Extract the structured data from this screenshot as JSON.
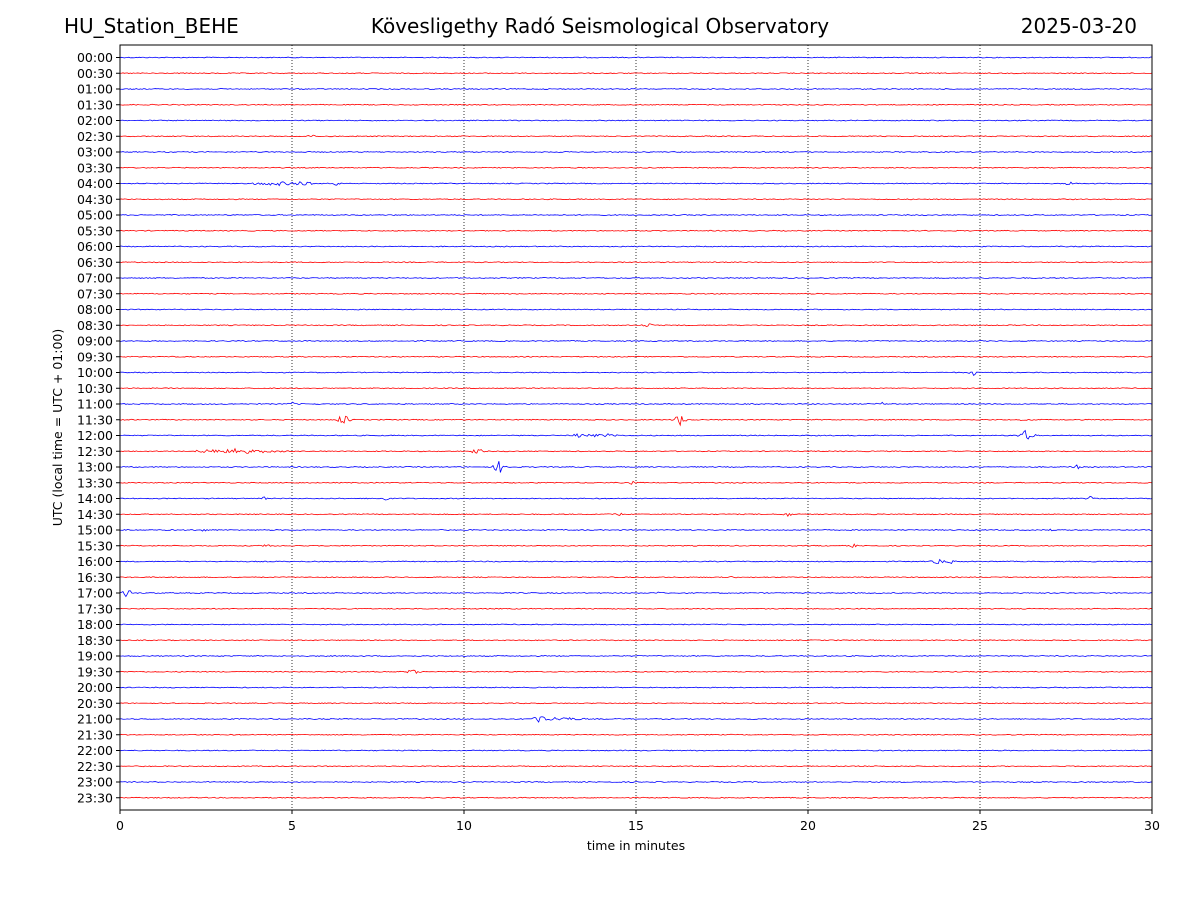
{
  "header": {
    "station": "HU_Station_BEHE",
    "observatory": "Kövesligethy Radó Seismological Observatory",
    "date": "2025-03-20"
  },
  "chart_data": {
    "type": "line",
    "title": "Kövesligethy Radó Seismological Observatory",
    "xlabel": "time in minutes",
    "ylabel": "UTC (local time = UTC + 01:00)",
    "xlim": [
      0,
      30
    ],
    "x_ticks": [
      "0",
      "5",
      "10",
      "15",
      "20",
      "25",
      "30"
    ],
    "grid": "vertical dotted lines at 5, 10, 15, 20, 25",
    "row_colors": [
      "#0000ff",
      "#ff0000"
    ],
    "rows": [
      "00:00",
      "00:30",
      "01:00",
      "01:30",
      "02:00",
      "02:30",
      "03:00",
      "03:30",
      "04:00",
      "04:30",
      "05:00",
      "05:30",
      "06:00",
      "06:30",
      "07:00",
      "07:30",
      "08:00",
      "08:30",
      "09:00",
      "09:30",
      "10:00",
      "10:30",
      "11:00",
      "11:30",
      "12:00",
      "12:30",
      "13:00",
      "13:30",
      "14:00",
      "14:30",
      "15:00",
      "15:30",
      "16:00",
      "16:30",
      "17:00",
      "17:30",
      "18:00",
      "18:30",
      "19:00",
      "19:30",
      "20:00",
      "20:30",
      "21:00",
      "21:30",
      "22:00",
      "22:30",
      "23:00",
      "23:30"
    ],
    "events": [
      {
        "row": "02:30",
        "t": 5.6,
        "amp": 2,
        "dur": 0.2
      },
      {
        "row": "04:00",
        "t": 4.5,
        "amp": 2,
        "dur": 1.0
      },
      {
        "row": "04:00",
        "t": 5.4,
        "amp": 2,
        "dur": 0.5
      },
      {
        "row": "04:00",
        "t": 6.3,
        "amp": 1.5,
        "dur": 0.2
      },
      {
        "row": "04:00",
        "t": 27.6,
        "amp": 1.5,
        "dur": 0.2
      },
      {
        "row": "08:30",
        "t": 15.3,
        "amp": 2,
        "dur": 0.4
      },
      {
        "row": "10:00",
        "t": 24.8,
        "amp": 3,
        "dur": 0.15
      },
      {
        "row": "11:00",
        "t": 5.0,
        "amp": 2,
        "dur": 0.2
      },
      {
        "row": "11:00",
        "t": 22.1,
        "amp": 2.5,
        "dur": 0.2
      },
      {
        "row": "11:30",
        "t": 6.5,
        "amp": 6,
        "dur": 0.25
      },
      {
        "row": "11:30",
        "t": 16.3,
        "amp": 6,
        "dur": 0.25
      },
      {
        "row": "11:30",
        "t": 26.3,
        "amp": 2,
        "dur": 0.2
      },
      {
        "row": "12:00",
        "t": 13.3,
        "amp": 2.5,
        "dur": 0.2
      },
      {
        "row": "12:00",
        "t": 14.0,
        "amp": 2,
        "dur": 0.8
      },
      {
        "row": "12:00",
        "t": 26.35,
        "amp": 6,
        "dur": 0.3
      },
      {
        "row": "12:30",
        "t": 3.2,
        "amp": 2.5,
        "dur": 1.8
      },
      {
        "row": "12:30",
        "t": 10.4,
        "amp": 3,
        "dur": 0.25
      },
      {
        "row": "13:00",
        "t": 11.05,
        "amp": 7,
        "dur": 0.25
      },
      {
        "row": "13:00",
        "t": 27.8,
        "amp": 2.5,
        "dur": 0.15
      },
      {
        "row": "13:30",
        "t": 14.9,
        "amp": 2,
        "dur": 0.15
      },
      {
        "row": "14:00",
        "t": 4.2,
        "amp": 2,
        "dur": 0.15
      },
      {
        "row": "14:00",
        "t": 7.65,
        "amp": 4,
        "dur": 0.2
      },
      {
        "row": "14:00",
        "t": 28.2,
        "amp": 2,
        "dur": 0.15
      },
      {
        "row": "14:30",
        "t": 14.5,
        "amp": 2,
        "dur": 0.2
      },
      {
        "row": "14:30",
        "t": 19.4,
        "amp": 2.5,
        "dur": 0.2
      },
      {
        "row": "15:00",
        "t": 2.4,
        "amp": 1.5,
        "dur": 0.3
      },
      {
        "row": "15:00",
        "t": 27.1,
        "amp": 2,
        "dur": 0.2
      },
      {
        "row": "15:30",
        "t": 4.3,
        "amp": 3,
        "dur": 0.2
      },
      {
        "row": "15:30",
        "t": 21.3,
        "amp": 2,
        "dur": 0.15
      },
      {
        "row": "16:00",
        "t": 11.0,
        "amp": 1.5,
        "dur": 0.15
      },
      {
        "row": "16:00",
        "t": 23.8,
        "amp": 3,
        "dur": 0.25
      },
      {
        "row": "16:00",
        "t": 24.2,
        "amp": 2,
        "dur": 0.2
      },
      {
        "row": "16:30",
        "t": 17.8,
        "amp": 1.5,
        "dur": 0.15
      },
      {
        "row": "17:00",
        "t": 0.2,
        "amp": 4,
        "dur": 0.25
      },
      {
        "row": "17:00",
        "t": 15.6,
        "amp": 1.5,
        "dur": 0.15
      },
      {
        "row": "19:30",
        "t": 8.5,
        "amp": 2,
        "dur": 0.3
      },
      {
        "row": "21:00",
        "t": 12.2,
        "amp": 3.5,
        "dur": 0.4
      },
      {
        "row": "21:00",
        "t": 12.8,
        "amp": 2,
        "dur": 1.0
      }
    ]
  }
}
